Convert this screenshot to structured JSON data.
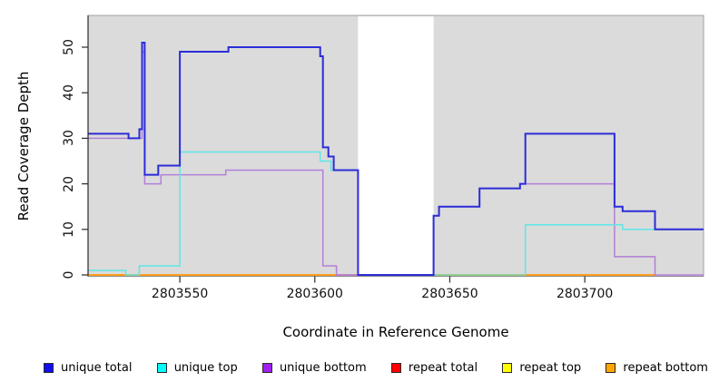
{
  "chart_data": {
    "type": "line",
    "subtype": "step-coverage",
    "title": "",
    "xlabel": "Coordinate in Reference Genome",
    "ylabel": "Read Coverage Depth",
    "xlim": [
      2803516,
      2803744
    ],
    "ylim": [
      0,
      57
    ],
    "x_ticks": [
      2803550,
      2803600,
      2803650,
      2803700
    ],
    "y_ticks": [
      0,
      10,
      20,
      30,
      40,
      50
    ],
    "grid": "off",
    "panel_background": "#DBDBDB",
    "panel_border": "#A2A2A2",
    "no_data_region": {
      "x_start": 2803616,
      "x_end": 2803644,
      "fill": "#FFFFFF"
    },
    "legend_position": "bottom",
    "series": [
      {
        "name": "repeat total",
        "line_color": "#D2484F",
        "width": 1.5,
        "segments": [
          [
            [
              2803608,
              0
            ],
            [
              2803616,
              0
            ]
          ]
        ]
      },
      {
        "name": "repeat top",
        "line_color": "#7CC87C",
        "width": 1.5,
        "note": "value 0; appears green where drawn over unique-top at 0",
        "segments": [
          [
            [
              2803644,
              0
            ],
            [
              2803678,
              0
            ]
          ]
        ]
      },
      {
        "name": "repeat bottom",
        "line_color": "#FF9E1B",
        "width": 2,
        "segments": [
          [
            [
              2803516,
              0
            ],
            [
              2803608,
              0
            ]
          ],
          [
            [
              2803678,
              0
            ],
            [
              2803726,
              0
            ]
          ]
        ]
      },
      {
        "name": "unique bottom",
        "line_color": "#B27FD9",
        "width": 1.5,
        "segments": [
          [
            [
              2803516,
              30
            ],
            [
              2803536,
              30
            ],
            [
              2803536,
              49
            ],
            [
              2803537,
              49
            ],
            [
              2803537,
              20
            ],
            [
              2803543,
              20
            ],
            [
              2803543,
              22
            ],
            [
              2803567,
              22
            ],
            [
              2803567,
              23
            ],
            [
              2803603,
              23
            ],
            [
              2803603,
              2
            ],
            [
              2803608,
              2
            ],
            [
              2803608,
              0
            ],
            [
              2803616,
              0
            ]
          ],
          [
            [
              2803644,
              0
            ],
            [
              2803644,
              13
            ],
            [
              2803646,
              13
            ],
            [
              2803646,
              15
            ],
            [
              2803661,
              15
            ],
            [
              2803661,
              19
            ],
            [
              2803676,
              19
            ],
            [
              2803676,
              20
            ],
            [
              2803711,
              20
            ],
            [
              2803711,
              4
            ],
            [
              2803726,
              4
            ],
            [
              2803726,
              0
            ],
            [
              2803744,
              0
            ]
          ]
        ]
      },
      {
        "name": "unique top",
        "line_color": "#5FE6E6",
        "width": 1.5,
        "segments": [
          [
            [
              2803516,
              1
            ],
            [
              2803530,
              1
            ],
            [
              2803530,
              0
            ],
            [
              2803535,
              0
            ],
            [
              2803535,
              2
            ],
            [
              2803550,
              2
            ],
            [
              2803550,
              27
            ],
            [
              2803602,
              27
            ],
            [
              2803602,
              25
            ],
            [
              2803606,
              25
            ],
            [
              2803606,
              23
            ],
            [
              2803616,
              23
            ],
            [
              2803616,
              0
            ],
            [
              2803644,
              0
            ]
          ],
          [
            [
              2803678,
              0
            ],
            [
              2803678,
              11
            ],
            [
              2803714,
              11
            ],
            [
              2803714,
              10
            ],
            [
              2803744,
              10
            ]
          ]
        ]
      },
      {
        "name": "unique total",
        "line_color": "#2C2CD8",
        "width": 2,
        "segments": [
          [
            [
              2803516,
              31
            ],
            [
              2803531,
              31
            ],
            [
              2803531,
              30
            ],
            [
              2803535,
              30
            ],
            [
              2803535,
              32
            ],
            [
              2803536,
              32
            ],
            [
              2803536,
              51
            ],
            [
              2803537,
              51
            ],
            [
              2803537,
              22
            ],
            [
              2803542,
              22
            ],
            [
              2803542,
              24
            ],
            [
              2803550,
              24
            ],
            [
              2803550,
              49
            ],
            [
              2803568,
              49
            ],
            [
              2803568,
              50
            ],
            [
              2803602,
              50
            ],
            [
              2803602,
              48
            ],
            [
              2803603,
              48
            ],
            [
              2803603,
              28
            ],
            [
              2803605,
              28
            ],
            [
              2803605,
              26
            ],
            [
              2803607,
              26
            ],
            [
              2803607,
              23
            ],
            [
              2803616,
              23
            ],
            [
              2803616,
              0
            ],
            [
              2803644,
              0
            ],
            [
              2803644,
              13
            ],
            [
              2803646,
              13
            ],
            [
              2803646,
              15
            ],
            [
              2803661,
              15
            ],
            [
              2803661,
              19
            ],
            [
              2803676,
              19
            ],
            [
              2803676,
              20
            ],
            [
              2803678,
              20
            ],
            [
              2803678,
              31
            ],
            [
              2803711,
              31
            ],
            [
              2803711,
              15
            ],
            [
              2803714,
              15
            ],
            [
              2803714,
              14
            ],
            [
              2803726,
              14
            ],
            [
              2803726,
              10
            ],
            [
              2803744,
              10
            ]
          ]
        ]
      }
    ]
  },
  "legend": {
    "items": [
      {
        "label": "unique total",
        "color": "#1010EE"
      },
      {
        "label": "unique top",
        "color": "#00FFFF"
      },
      {
        "label": "unique bottom",
        "color": "#A020F0"
      },
      {
        "label": "repeat total",
        "color": "#FF0000"
      },
      {
        "label": "repeat top",
        "color": "#FFFF00"
      },
      {
        "label": "repeat bottom",
        "color": "#FFA500"
      }
    ]
  },
  "axes_text": {
    "x_title": "Coordinate in Reference Genome",
    "y_title": "Read Coverage Depth",
    "x_tick_labels": [
      "2803550",
      "2803600",
      "2803650",
      "2803700"
    ],
    "y_tick_labels": [
      "0",
      "10",
      "20",
      "30",
      "40",
      "50"
    ]
  }
}
